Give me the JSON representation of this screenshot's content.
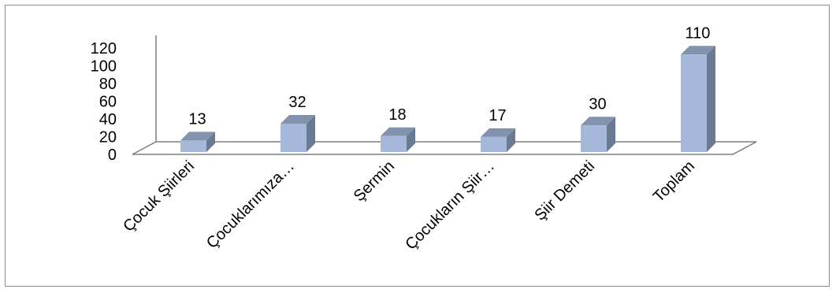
{
  "chart_data": {
    "type": "bar",
    "categories": [
      "Çocuk Şiirleri",
      "Çocuklarımıza…",
      "Şermin",
      "Çocukların Şiir…",
      "Şiir Demeti",
      "Toplam"
    ],
    "values": [
      13,
      32,
      18,
      17,
      30,
      110
    ],
    "data_labels": [
      "13",
      "32",
      "18",
      "17",
      "30",
      "110"
    ],
    "y_ticks": [
      "0",
      "20",
      "40",
      "60",
      "80",
      "100",
      "120"
    ],
    "ylim": [
      0,
      120
    ],
    "title": "",
    "xlabel": "",
    "ylabel": "",
    "grid": false,
    "legend": "none",
    "colors": {
      "bar_front": "#a6b8d9",
      "bar_side": "#6b7a93",
      "bar_top": "#8393ad",
      "axis": "#7f7f7f"
    }
  }
}
